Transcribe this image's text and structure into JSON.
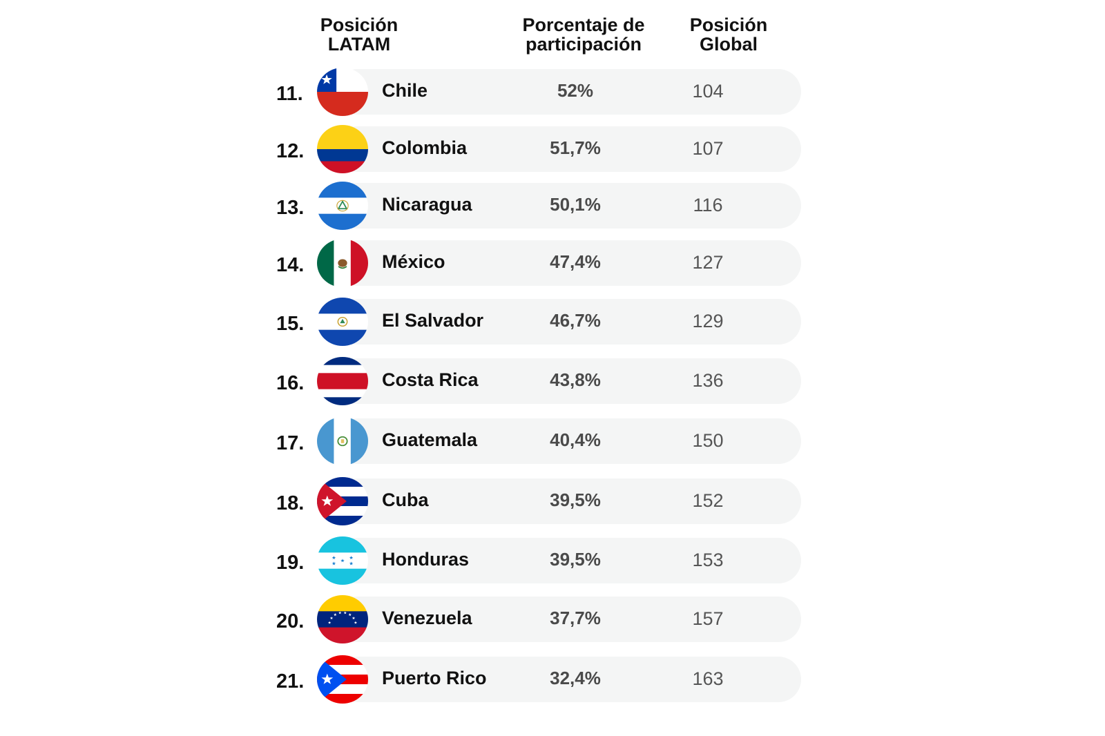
{
  "headers": {
    "position_latam": [
      "Posición",
      "LATAM"
    ],
    "percentage": [
      "Porcentaje de",
      "participación"
    ],
    "position_global": [
      "Posición",
      "Global"
    ]
  },
  "chart_data": {
    "type": "table",
    "columns": [
      "Posición LATAM",
      "Porcentaje de participación",
      "Posición Global"
    ],
    "rows": [
      {
        "rank": "11.",
        "country": "Chile",
        "flag": "chile-flag",
        "percentage": "52%",
        "global": "104"
      },
      {
        "rank": "12.",
        "country": "Colombia",
        "flag": "colombia-flag",
        "percentage": "51,7%",
        "global": "107"
      },
      {
        "rank": "13.",
        "country": "Nicaragua",
        "flag": "nicaragua-flag",
        "percentage": "50,1%",
        "global": "116"
      },
      {
        "rank": "14.",
        "country": "México",
        "flag": "mexico-flag",
        "percentage": "47,4%",
        "global": "127"
      },
      {
        "rank": "15.",
        "country": "El Salvador",
        "flag": "el-salvador-flag",
        "percentage": "46,7%",
        "global": "129"
      },
      {
        "rank": "16.",
        "country": "Costa Rica",
        "flag": "costa-rica-flag",
        "percentage": "43,8%",
        "global": "136"
      },
      {
        "rank": "17.",
        "country": "Guatemala",
        "flag": "guatemala-flag",
        "percentage": "40,4%",
        "global": "150"
      },
      {
        "rank": "18.",
        "country": "Cuba",
        "flag": "cuba-flag",
        "percentage": "39,5%",
        "global": "152"
      },
      {
        "rank": "19.",
        "country": "Honduras",
        "flag": "honduras-flag",
        "percentage": "39,5%",
        "global": "153"
      },
      {
        "rank": "20.",
        "country": "Venezuela",
        "flag": "venezuela-flag",
        "percentage": "37,7%",
        "global": "157"
      },
      {
        "rank": "21.",
        "country": "Puerto Rico",
        "flag": "puerto-rico-flag",
        "percentage": "32,4%",
        "global": "163"
      }
    ]
  },
  "colors": {
    "row_background": "#f4f5f5",
    "text": "#111111",
    "percentage_text": "#4a4a4a",
    "global_text": "#555555"
  }
}
